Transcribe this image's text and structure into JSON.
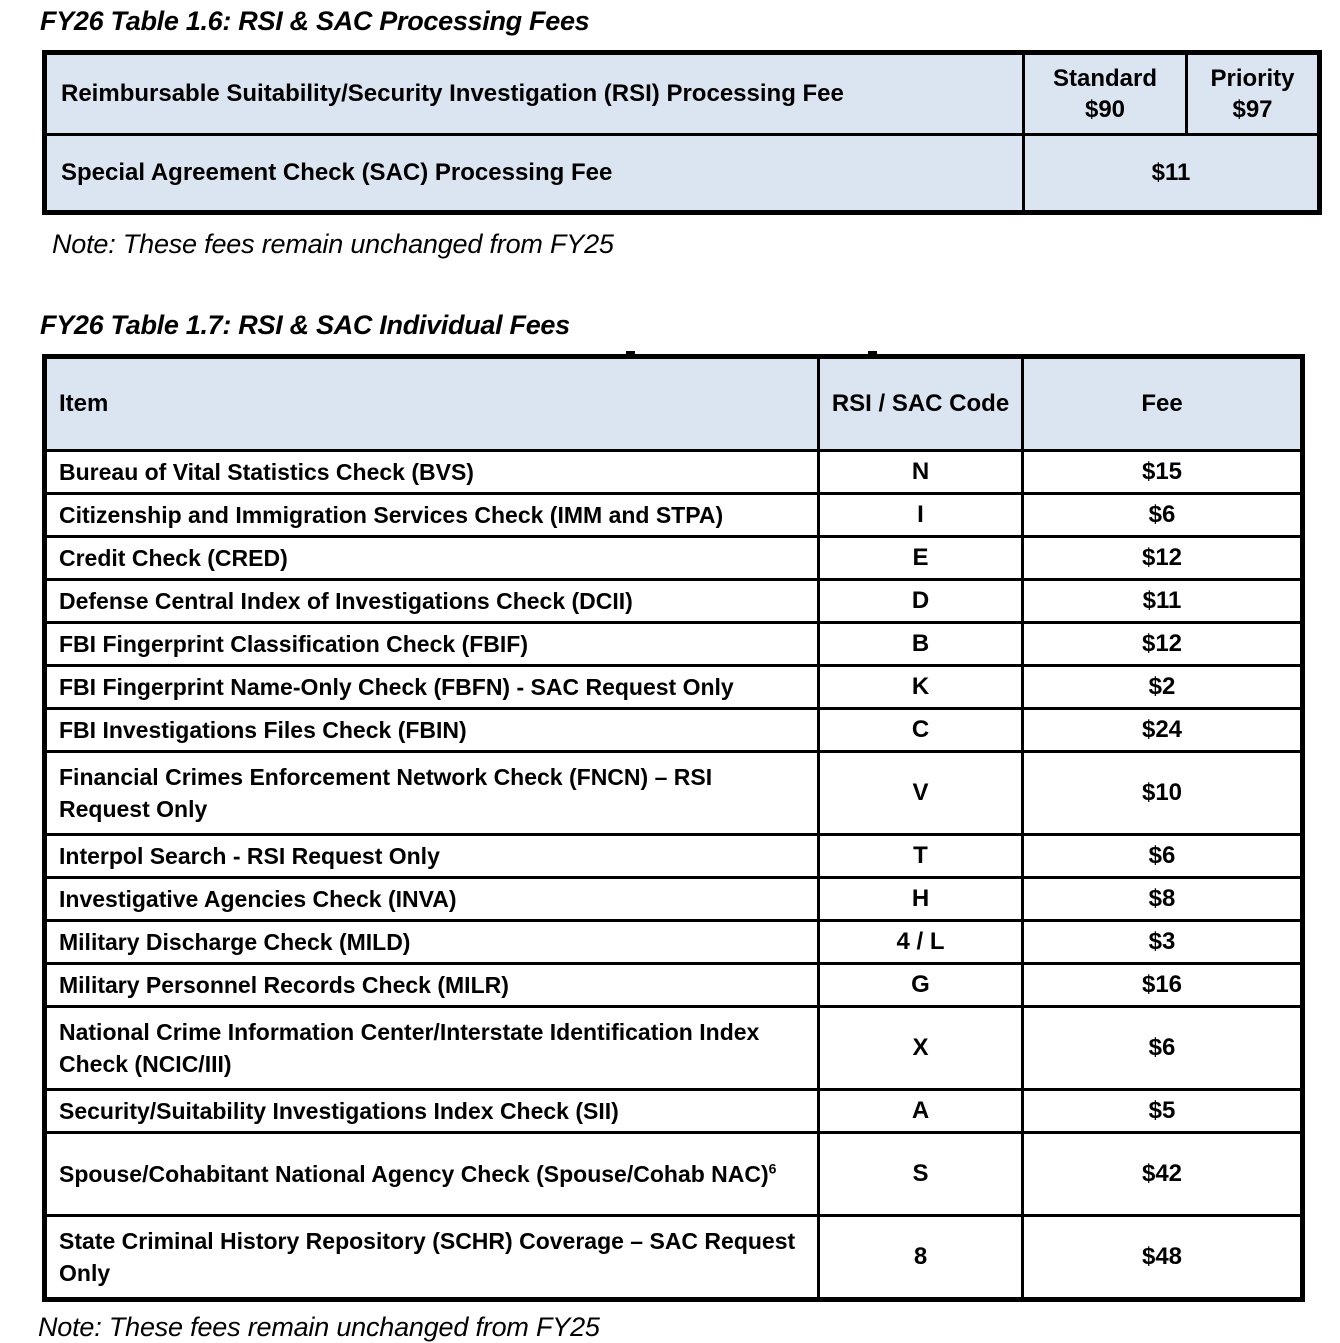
{
  "doc": {
    "table1_title": "FY26 Table 1.6: RSI & SAC Processing Fees",
    "table1_note": "Note: These fees remain unchanged from FY25",
    "table2_title": "FY26 Table 1.7: RSI & SAC Individual Fees",
    "table2_note": "Note: These fees remain unchanged from FY25"
  },
  "table1": {
    "row1_label": "Reimbursable Suitability/Security Investigation (RSI) Processing Fee",
    "standard_label": "Standard",
    "standard_fee": "$90",
    "priority_label": "Priority",
    "priority_fee": "$97",
    "row2_label": "Special Agreement Check (SAC) Processing Fee",
    "row2_fee": "$11"
  },
  "table2": {
    "headers": {
      "item": "Item",
      "code": "RSI / SAC Code",
      "fee": "Fee"
    },
    "rows": [
      {
        "item": "Bureau of Vital Statistics Check (BVS)",
        "code": "N",
        "fee": "$15"
      },
      {
        "item": "Citizenship and Immigration Services Check (IMM and STPA)",
        "code": "I",
        "fee": "$6"
      },
      {
        "item": "Credit Check (CRED)",
        "code": "E",
        "fee": "$12"
      },
      {
        "item": "Defense Central Index of Investigations Check (DCII)",
        "code": "D",
        "fee": "$11"
      },
      {
        "item": "FBI Fingerprint Classification Check (FBIF)",
        "code": "B",
        "fee": "$12"
      },
      {
        "item": "FBI Fingerprint Name-Only Check (FBFN) - SAC Request Only",
        "code": "K",
        "fee": "$2"
      },
      {
        "item": "FBI Investigations Files Check (FBIN)",
        "code": "C",
        "fee": "$24"
      },
      {
        "item": "Financial Crimes Enforcement Network Check (FNCN) – RSI Request Only",
        "code": "V",
        "fee": "$10"
      },
      {
        "item": "Interpol Search - RSI Request Only",
        "code": "T",
        "fee": "$6"
      },
      {
        "item": "Investigative Agencies Check (INVA)",
        "code": "H",
        "fee": "$8"
      },
      {
        "item": "Military Discharge Check (MILD)",
        "code": "4 / L",
        "fee": "$3"
      },
      {
        "item": "Military Personnel Records Check (MILR)",
        "code": "G",
        "fee": "$16"
      },
      {
        "item": "National Crime Information Center/Interstate Identification Index Check (NCIC/III)",
        "code": "X",
        "fee": "$6"
      },
      {
        "item": "Security/Suitability Investigations Index Check (SII)",
        "code": "A",
        "fee": "$5"
      },
      {
        "item": "Spouse/Cohabitant National Agency Check (Spouse/Cohab NAC)",
        "footnote": "6",
        "code": "S",
        "fee": "$42"
      },
      {
        "item": "State Criminal History Repository (SCHR) Coverage – SAC Request Only",
        "code": "8",
        "fee": "$48"
      }
    ]
  }
}
